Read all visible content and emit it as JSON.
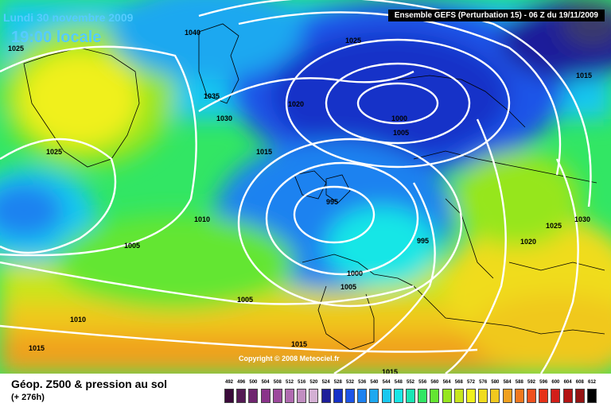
{
  "header": {
    "date": "Lundi 30 novembre 2009",
    "local_time": "19:00 locale",
    "run_info": "Ensemble GEFS (Perturbation 15)  -  06 Z du 19/11/2009"
  },
  "footer": {
    "title": "Géop. Z500 & pression au sol",
    "forecast_hour": "(+ 276h)"
  },
  "copyright": "Copyright © 2008 Meteociel.fr",
  "isobar_labels": [
    "1040",
    "1025",
    "1025",
    "1035",
    "1030",
    "1020",
    "1000",
    "1005",
    "1015",
    "1025",
    "1015",
    "1010",
    "995",
    "995",
    "1005",
    "1000",
    "1005",
    "1030",
    "1025",
    "1020",
    "1005",
    "1010",
    "1015",
    "1015",
    "1015"
  ],
  "legend": {
    "values": [
      "492",
      "496",
      "500",
      "504",
      "508",
      "512",
      "516",
      "520",
      "524",
      "528",
      "532",
      "536",
      "540",
      "544",
      "548",
      "552",
      "556",
      "560",
      "564",
      "568",
      "572",
      "576",
      "580",
      "584",
      "588",
      "592",
      "596",
      "600",
      "604",
      "608",
      "612"
    ],
    "colors": [
      "#3a0a3a",
      "#551a55",
      "#702570",
      "#8a338a",
      "#9d4a9d",
      "#b06ab0",
      "#c18ec1",
      "#d4b0d4",
      "#1e1e9a",
      "#1632c8",
      "#1e55e8",
      "#1e82f0",
      "#1ea8f0",
      "#19c8f0",
      "#19e6e6",
      "#19e6b4",
      "#32e664",
      "#64e632",
      "#96e61e",
      "#c8e61e",
      "#f0f01e",
      "#f0dc1e",
      "#f0c81e",
      "#f0a01e",
      "#f0781e",
      "#f0501e",
      "#e63219",
      "#d21e19",
      "#b41414",
      "#961414",
      "#000000"
    ]
  }
}
